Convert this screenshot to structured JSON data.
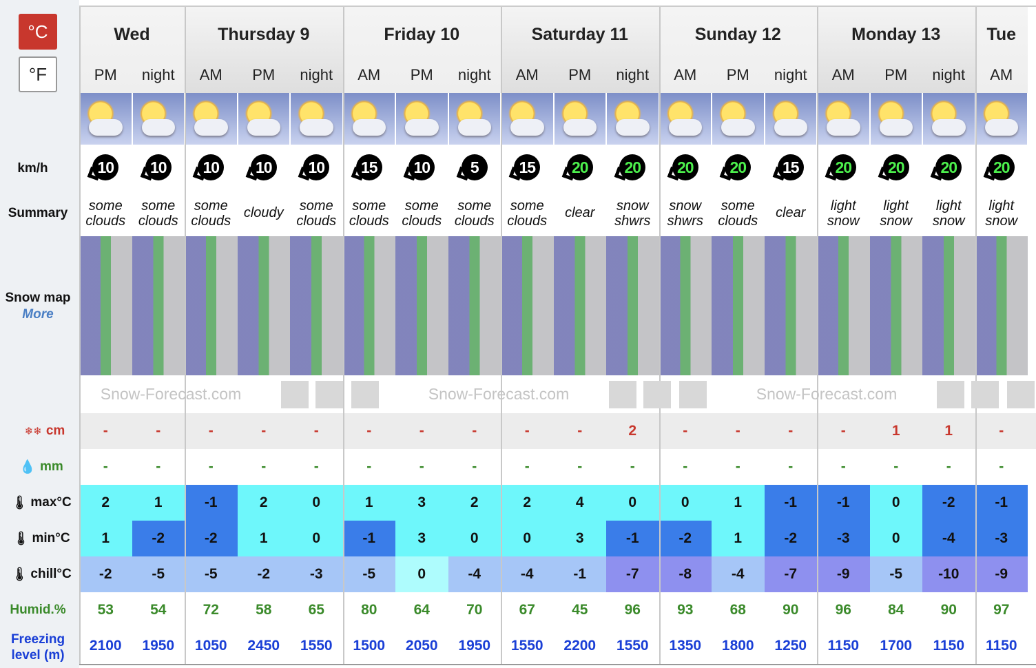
{
  "units": {
    "celsius": "°C",
    "fahrenheit": "°F"
  },
  "row_labels": {
    "wind": "km/h",
    "summary": "Summary",
    "snow_map": "Snow map",
    "more": "More",
    "snow": "cm",
    "rain": "mm",
    "max": "max°C",
    "min": "min°C",
    "chill": "chill°C",
    "humid": "Humid.%",
    "freezing": "Freezing level (m)"
  },
  "watermark": "Snow-Forecast.com",
  "days": [
    {
      "name": "Wed",
      "periods": [
        {
          "period": "PM",
          "wind": 10,
          "summary": [
            "some",
            "clouds"
          ],
          "snow": "-",
          "rain": "-",
          "max": 2,
          "min": 1,
          "chill": -2,
          "humid": 53,
          "freezing": 2100
        },
        {
          "period": "night",
          "wind": 10,
          "summary": [
            "some",
            "clouds"
          ],
          "snow": "-",
          "rain": "-",
          "max": 1,
          "min": -2,
          "chill": -5,
          "humid": 54,
          "freezing": 1950
        }
      ]
    },
    {
      "name": "Thursday 9",
      "periods": [
        {
          "period": "AM",
          "wind": 10,
          "summary": [
            "some",
            "clouds"
          ],
          "snow": "-",
          "rain": "-",
          "max": -1,
          "min": -2,
          "chill": -5,
          "humid": 72,
          "freezing": 1050
        },
        {
          "period": "PM",
          "wind": 10,
          "summary": [
            "cloudy"
          ],
          "snow": "-",
          "rain": "-",
          "max": 2,
          "min": 1,
          "chill": -2,
          "humid": 58,
          "freezing": 2450
        },
        {
          "period": "night",
          "wind": 10,
          "summary": [
            "some",
            "clouds"
          ],
          "snow": "-",
          "rain": "-",
          "max": 0,
          "min": 0,
          "chill": -3,
          "humid": 65,
          "freezing": 1550
        }
      ]
    },
    {
      "name": "Friday 10",
      "periods": [
        {
          "period": "AM",
          "wind": 15,
          "summary": [
            "some",
            "clouds"
          ],
          "snow": "-",
          "rain": "-",
          "max": 1,
          "min": -1,
          "chill": -5,
          "humid": 80,
          "freezing": 1500
        },
        {
          "period": "PM",
          "wind": 10,
          "summary": [
            "some",
            "clouds"
          ],
          "snow": "-",
          "rain": "-",
          "max": 3,
          "min": 3,
          "chill": 0,
          "humid": 64,
          "freezing": 2050
        },
        {
          "period": "night",
          "wind": 5,
          "summary": [
            "some",
            "clouds"
          ],
          "snow": "-",
          "rain": "-",
          "max": 2,
          "min": 0,
          "chill": -4,
          "humid": 70,
          "freezing": 1950
        }
      ]
    },
    {
      "name": "Saturday 11",
      "periods": [
        {
          "period": "AM",
          "wind": 15,
          "summary": [
            "some",
            "clouds"
          ],
          "snow": "-",
          "rain": "-",
          "max": 2,
          "min": 0,
          "chill": -4,
          "humid": 67,
          "freezing": 1550
        },
        {
          "period": "PM",
          "wind": 20,
          "summary": [
            "clear"
          ],
          "snow": "-",
          "rain": "-",
          "max": 4,
          "min": 3,
          "chill": -1,
          "humid": 45,
          "freezing": 2200
        },
        {
          "period": "night",
          "wind": 20,
          "summary": [
            "snow",
            "shwrs"
          ],
          "snow": 2,
          "rain": "-",
          "max": 0,
          "min": -1,
          "chill": -7,
          "humid": 96,
          "freezing": 1550
        }
      ]
    },
    {
      "name": "Sunday 12",
      "periods": [
        {
          "period": "AM",
          "wind": 20,
          "summary": [
            "snow",
            "shwrs"
          ],
          "snow": "-",
          "rain": "-",
          "max": 0,
          "min": -2,
          "chill": -8,
          "humid": 93,
          "freezing": 1350
        },
        {
          "period": "PM",
          "wind": 20,
          "summary": [
            "some",
            "clouds"
          ],
          "snow": "-",
          "rain": "-",
          "max": 1,
          "min": 1,
          "chill": -4,
          "humid": 68,
          "freezing": 1800
        },
        {
          "period": "night",
          "wind": 15,
          "summary": [
            "clear"
          ],
          "snow": "-",
          "rain": "-",
          "max": -1,
          "min": -2,
          "chill": -7,
          "humid": 90,
          "freezing": 1250
        }
      ]
    },
    {
      "name": "Monday 13",
      "periods": [
        {
          "period": "AM",
          "wind": 20,
          "summary": [
            "light",
            "snow"
          ],
          "snow": "-",
          "rain": "-",
          "max": -1,
          "min": -3,
          "chill": -9,
          "humid": 96,
          "freezing": 1150
        },
        {
          "period": "PM",
          "wind": 20,
          "summary": [
            "light",
            "snow"
          ],
          "snow": 1,
          "rain": "-",
          "max": 0,
          "min": 0,
          "chill": -5,
          "humid": 84,
          "freezing": 1700
        },
        {
          "period": "night",
          "wind": 20,
          "summary": [
            "light",
            "snow"
          ],
          "snow": 1,
          "rain": "-",
          "max": -2,
          "min": -4,
          "chill": -10,
          "humid": 90,
          "freezing": 1150
        }
      ]
    },
    {
      "name": "Tue",
      "periods": [
        {
          "period": "AM",
          "wind": 20,
          "summary": [
            "light",
            "snow"
          ],
          "snow": "-",
          "rain": "-",
          "max": -1,
          "min": -3,
          "chill": -9,
          "humid": 97,
          "freezing": 1150
        }
      ]
    }
  ]
}
